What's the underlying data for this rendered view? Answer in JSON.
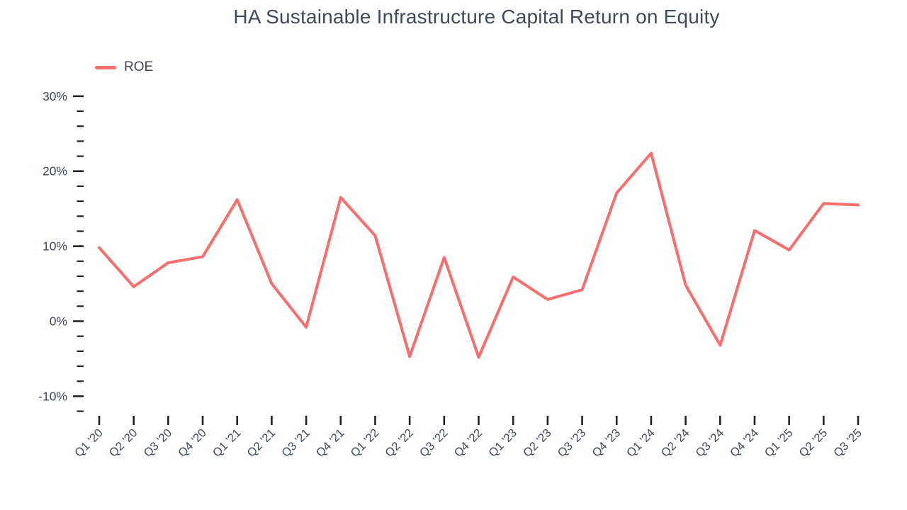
{
  "chart_data": {
    "type": "line",
    "title": "HA Sustainable Infrastructure Capital Return on Equity",
    "categories": [
      "Q1 '20",
      "Q2 '20",
      "Q3 '20",
      "Q4 '20",
      "Q1 '21",
      "Q2 '21",
      "Q3 '21",
      "Q4 '21",
      "Q1 '22",
      "Q2 '22",
      "Q3 '22",
      "Q4 '22",
      "Q1 '23",
      "Q2 '23",
      "Q3 '23",
      "Q4 '23",
      "Q1 '24",
      "Q2 '24",
      "Q3 '24",
      "Q4 '24",
      "Q1 '25",
      "Q2 '25",
      "Q3 '25"
    ],
    "series": [
      {
        "name": "ROE",
        "color": "#f86e6e",
        "values": [
          9.8,
          4.6,
          7.8,
          8.6,
          16.2,
          5.0,
          -0.8,
          16.5,
          11.4,
          -4.7,
          8.5,
          -4.8,
          5.9,
          2.9,
          4.2,
          17.1,
          22.4,
          4.8,
          -3.2,
          12.1,
          9.5,
          15.7,
          15.5
        ]
      }
    ],
    "xlabel": "",
    "ylabel": "",
    "y_axis": {
      "unit": "%",
      "major_ticks": [
        30,
        20,
        10,
        0,
        -10
      ],
      "minor_tick_step": 2,
      "min": -12,
      "max": 30,
      "grid": false
    },
    "x_axis": {
      "label_rotation_degrees": -45
    },
    "legend": {
      "position": "top-left",
      "entries": [
        "ROE"
      ]
    },
    "colors": {
      "text": "#3e4a5a",
      "tick": "#222222",
      "background": "#ffffff"
    }
  }
}
